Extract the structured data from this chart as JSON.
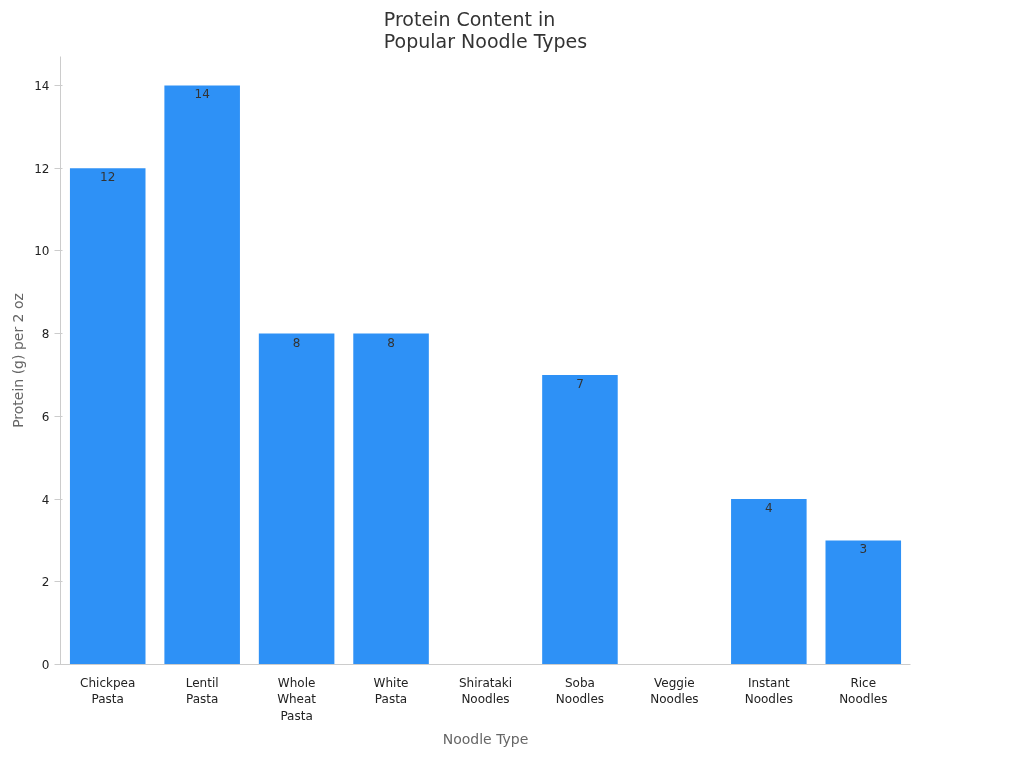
{
  "chart_data": {
    "type": "bar",
    "title": "Protein Content in\nPopular Noodle Types",
    "xlabel": "Noodle Type",
    "ylabel": "Protein (g) per 2 oz",
    "categories": [
      "Chickpea Pasta",
      "Lentil Pasta",
      "Whole Wheat Pasta",
      "White Pasta",
      "Shirataki Noodles",
      "Soba Noodles",
      "Veggie Noodles",
      "Instant Noodles",
      "Rice Noodles"
    ],
    "values": [
      12,
      14,
      8,
      8,
      0,
      7,
      0,
      4,
      3
    ],
    "value_labels": [
      "12",
      "14",
      "8",
      "8",
      null,
      "7",
      null,
      "4",
      "3"
    ],
    "color": "#2e91f6",
    "ylim": [
      0,
      14.7
    ],
    "yticks": [
      0,
      2,
      4,
      6,
      8,
      10,
      12,
      14
    ],
    "grid": false
  }
}
